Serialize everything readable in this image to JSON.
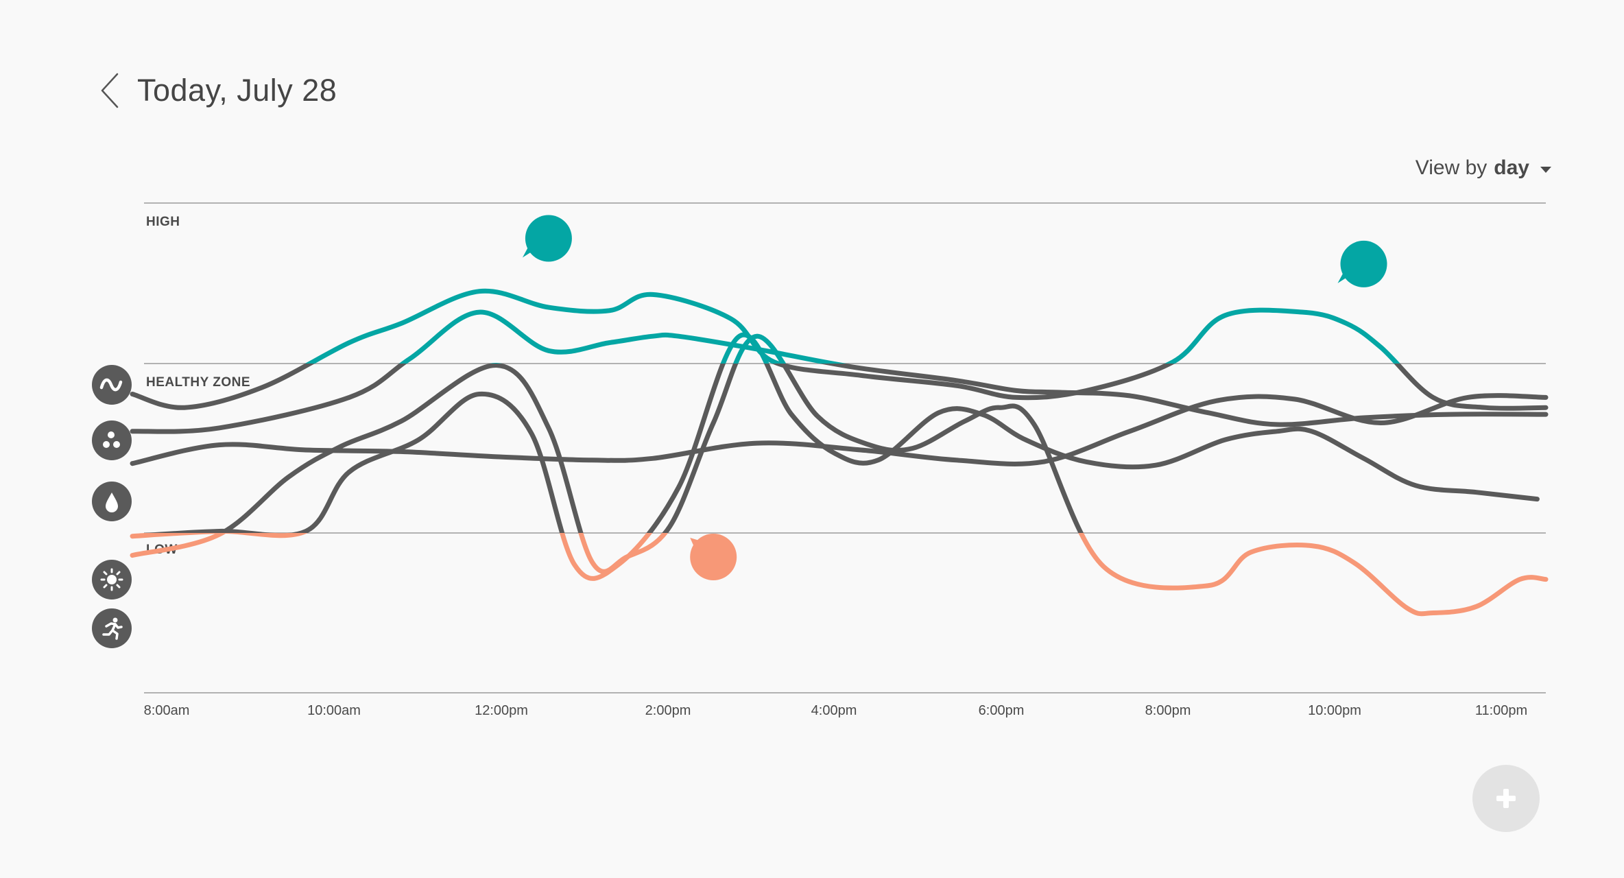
{
  "header": {
    "title": "Today, July 28"
  },
  "view_by": {
    "prefix": "View by",
    "value": "day"
  },
  "zones": [
    "HIGH",
    "HEALTHY ZONE",
    "LOW"
  ],
  "metrics": [
    {
      "id": "activity",
      "icon": "wave-icon"
    },
    {
      "id": "nutrients",
      "icon": "dots-icon"
    },
    {
      "id": "hydration",
      "icon": "drop-icon"
    },
    {
      "id": "sunlight",
      "icon": "sun-icon"
    },
    {
      "id": "exercise",
      "icon": "runner-icon"
    }
  ],
  "colors": {
    "high": "#04a6a4",
    "normal": "#5a5a5a",
    "low": "#f79877",
    "background": "#f9f9f9",
    "fab": "#e3e3e3"
  },
  "chart_data": {
    "type": "line",
    "x_tick_labels": [
      "8:00am",
      "10:00am",
      "12:00pm",
      "2:00pm",
      "4:00pm",
      "6:00pm",
      "8:00pm",
      "10:00pm",
      "11:00pm"
    ],
    "y_zone_labels": [
      "HIGH",
      "HEALTHY ZONE",
      "LOW"
    ],
    "ylim": [
      0,
      3
    ],
    "grid": true,
    "series": [
      {
        "values": [
          [
            8.0,
            1.82
          ],
          [
            8.6,
            1.74
          ],
          [
            9.5,
            1.86
          ],
          [
            10.5,
            2.13
          ],
          [
            11.1,
            2.25
          ],
          [
            12.0,
            2.45
          ],
          [
            12.8,
            2.35
          ],
          [
            13.5,
            2.33
          ],
          [
            14.0,
            2.43
          ],
          [
            14.9,
            2.28
          ],
          [
            15.4,
            2.01
          ],
          [
            16.4,
            1.93
          ],
          [
            17.5,
            1.87
          ],
          [
            18.2,
            1.8
          ],
          [
            19.0,
            1.84
          ],
          [
            20.0,
            2.01
          ],
          [
            20.6,
            2.3
          ],
          [
            21.5,
            2.32
          ],
          [
            22.0,
            2.25
          ],
          [
            22.4,
            2.1
          ],
          [
            23.0,
            1.8
          ],
          [
            23.6,
            1.74
          ],
          [
            24.3,
            1.74
          ]
        ]
      },
      {
        "values": [
          [
            8.0,
            1.6
          ],
          [
            9.0,
            1.62
          ],
          [
            10.5,
            1.8
          ],
          [
            11.2,
            2.03
          ],
          [
            12.0,
            2.32
          ],
          [
            12.8,
            2.08
          ],
          [
            13.5,
            2.13
          ],
          [
            14.0,
            2.17
          ],
          [
            14.3,
            2.17
          ],
          [
            15.2,
            2.09
          ],
          [
            16.3,
            1.98
          ],
          [
            17.5,
            1.9
          ],
          [
            18.2,
            1.84
          ],
          [
            18.7,
            1.83
          ],
          [
            19.5,
            1.81
          ],
          [
            20.4,
            1.71
          ],
          [
            21.2,
            1.64
          ],
          [
            22.2,
            1.68
          ],
          [
            23.2,
            1.7
          ],
          [
            24.3,
            1.7
          ]
        ]
      },
      {
        "values": [
          [
            8.0,
            1.41
          ],
          [
            9.0,
            1.52
          ],
          [
            10.0,
            1.49
          ],
          [
            11.1,
            1.48
          ],
          [
            12.2,
            1.45
          ],
          [
            13.3,
            1.43
          ],
          [
            14.0,
            1.44
          ],
          [
            15.2,
            1.53
          ],
          [
            16.4,
            1.49
          ],
          [
            17.5,
            1.43
          ],
          [
            18.5,
            1.42
          ],
          [
            19.5,
            1.6
          ],
          [
            20.5,
            1.78
          ],
          [
            21.4,
            1.79
          ],
          [
            22.4,
            1.65
          ],
          [
            23.4,
            1.8
          ],
          [
            24.3,
            1.8
          ]
        ]
      },
      {
        "values": [
          [
            8.0,
            0.98
          ],
          [
            9.0,
            1.01
          ],
          [
            10.0,
            1.01
          ],
          [
            10.5,
            1.36
          ],
          [
            11.3,
            1.55
          ],
          [
            12.0,
            1.82
          ],
          [
            12.6,
            1.59
          ],
          [
            13.1,
            0.8
          ],
          [
            13.6,
            0.8
          ],
          [
            14.3,
            1.27
          ],
          [
            15.0,
            2.17
          ],
          [
            15.6,
            1.7
          ],
          [
            16.1,
            1.47
          ],
          [
            16.6,
            1.43
          ],
          [
            17.3,
            1.71
          ],
          [
            17.8,
            1.7
          ],
          [
            18.3,
            1.55
          ],
          [
            19.0,
            1.42
          ],
          [
            19.8,
            1.4
          ],
          [
            20.6,
            1.55
          ],
          [
            21.2,
            1.6
          ],
          [
            21.6,
            1.6
          ],
          [
            22.2,
            1.44
          ],
          [
            22.8,
            1.28
          ],
          [
            23.5,
            1.24
          ],
          [
            24.2,
            1.2
          ]
        ]
      },
      {
        "values": [
          [
            8.0,
            0.86
          ],
          [
            9.0,
            0.99
          ],
          [
            9.8,
            1.33
          ],
          [
            10.4,
            1.51
          ],
          [
            11.1,
            1.66
          ],
          [
            12.2,
            1.99
          ],
          [
            12.8,
            1.62
          ],
          [
            13.3,
            0.82
          ],
          [
            13.7,
            0.85
          ],
          [
            14.2,
            1.04
          ],
          [
            14.7,
            1.65
          ],
          [
            15.2,
            2.17
          ],
          [
            15.9,
            1.69
          ],
          [
            16.5,
            1.52
          ],
          [
            17.0,
            1.5
          ],
          [
            17.6,
            1.66
          ],
          [
            18.0,
            1.74
          ],
          [
            18.4,
            1.64
          ],
          [
            19.2,
            0.79
          ],
          [
            20.4,
            0.67
          ],
          [
            20.9,
            0.88
          ],
          [
            21.6,
            0.92
          ],
          [
            22.1,
            0.81
          ],
          [
            22.7,
            0.53
          ],
          [
            23.0,
            0.5
          ],
          [
            23.5,
            0.54
          ],
          [
            24.0,
            0.71
          ],
          [
            24.3,
            0.71
          ]
        ]
      }
    ],
    "annotations": [
      {
        "x": 12.8,
        "y": 2.78,
        "color": "high"
      },
      {
        "x": 14.7,
        "y": 0.85,
        "color": "low"
      },
      {
        "x": 22.2,
        "y": 2.62,
        "color": "high"
      }
    ]
  }
}
